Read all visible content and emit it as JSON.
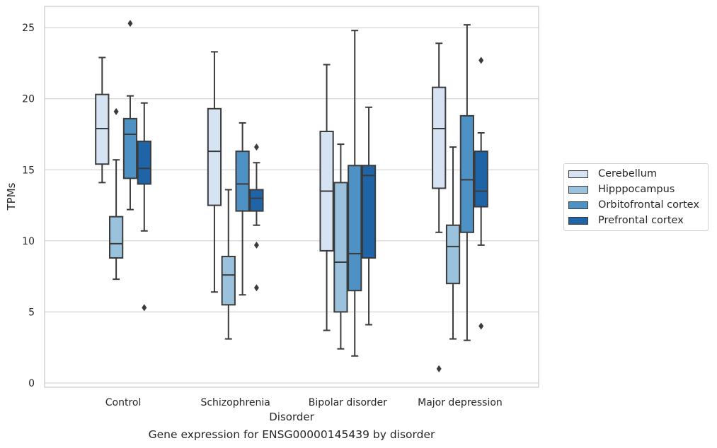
{
  "caption": "Gene expression for ENSG00000145439 by disorder",
  "chart_data": {
    "type": "box",
    "xlabel": "Disorder",
    "ylabel": "TPMs",
    "ylim": [
      -0.3,
      26.5
    ],
    "yticks": [
      0,
      5,
      10,
      15,
      20,
      25
    ],
    "grid": "horizontal",
    "legend_position": "right",
    "categories": [
      "Control",
      "Schizophrenia",
      "Bipolar disorder",
      "Major depression"
    ],
    "series": [
      {
        "name": "Cerebellum",
        "color": "#d5e3f2",
        "boxes": [
          {
            "whislo": 14.1,
            "q1": 15.4,
            "med": 17.9,
            "q3": 20.3,
            "whishi": 22.9,
            "fliers": []
          },
          {
            "whislo": 6.4,
            "q1": 12.5,
            "med": 16.3,
            "q3": 19.3,
            "whishi": 23.3,
            "fliers": []
          },
          {
            "whislo": 3.7,
            "q1": 9.3,
            "med": 13.5,
            "q3": 17.7,
            "whishi": 22.4,
            "fliers": []
          },
          {
            "whislo": 10.6,
            "q1": 13.7,
            "med": 17.9,
            "q3": 20.8,
            "whishi": 23.9,
            "fliers": [
              1.0
            ]
          }
        ]
      },
      {
        "name": "Hipppocampus",
        "color": "#9ac2dd",
        "boxes": [
          {
            "whislo": 7.3,
            "q1": 8.8,
            "med": 9.8,
            "q3": 11.7,
            "whishi": 15.7,
            "fliers": [
              19.1
            ]
          },
          {
            "whislo": 3.1,
            "q1": 5.5,
            "med": 7.6,
            "q3": 8.9,
            "whishi": 13.6,
            "fliers": []
          },
          {
            "whislo": 2.4,
            "q1": 5.0,
            "med": 8.5,
            "q3": 14.1,
            "whishi": 16.8,
            "fliers": []
          },
          {
            "whislo": 3.1,
            "q1": 7.0,
            "med": 9.6,
            "q3": 11.1,
            "whishi": 16.6,
            "fliers": []
          }
        ]
      },
      {
        "name": "Orbitofrontal cortex",
        "color": "#4e91c4",
        "boxes": [
          {
            "whislo": 12.2,
            "q1": 14.4,
            "med": 17.5,
            "q3": 18.6,
            "whishi": 20.2,
            "fliers": [
              25.3
            ]
          },
          {
            "whislo": 6.2,
            "q1": 12.1,
            "med": 14.0,
            "q3": 16.3,
            "whishi": 18.3,
            "fliers": []
          },
          {
            "whislo": 1.9,
            "q1": 6.5,
            "med": 9.1,
            "q3": 15.3,
            "whishi": 24.8,
            "fliers": []
          },
          {
            "whislo": 3.0,
            "q1": 10.6,
            "med": 14.3,
            "q3": 18.8,
            "whishi": 25.2,
            "fliers": []
          }
        ]
      },
      {
        "name": "Prefrontal cortex",
        "color": "#2064a8",
        "boxes": [
          {
            "whislo": 10.7,
            "q1": 14.0,
            "med": 15.1,
            "q3": 17.0,
            "whishi": 19.7,
            "fliers": [
              5.3
            ]
          },
          {
            "whislo": 11.1,
            "q1": 12.1,
            "med": 13.0,
            "q3": 13.6,
            "whishi": 15.5,
            "fliers": [
              16.6,
              9.7,
              6.7
            ]
          },
          {
            "whislo": 4.1,
            "q1": 8.8,
            "med": 14.6,
            "q3": 15.3,
            "whishi": 19.4,
            "fliers": []
          },
          {
            "whislo": 9.7,
            "q1": 12.4,
            "med": 13.5,
            "q3": 16.3,
            "whishi": 17.6,
            "fliers": [
              22.7,
              4.0
            ]
          }
        ]
      }
    ]
  }
}
